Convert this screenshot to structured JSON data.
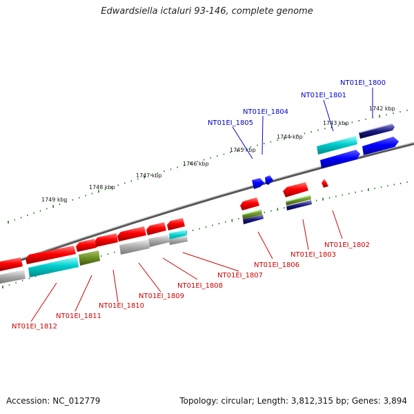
{
  "title": "Edwardsiella ictaluri 93-146, complete genome",
  "footer": {
    "accession": "Accession: NC_012779",
    "topology": "Topology: circular; Length: 3,812,315 bp; Genes: 3,894"
  },
  "kbp_labels": [
    "1742 kbp",
    "1743 kbp",
    "1744 kbp",
    "1745 kbp",
    "1746 kbp",
    "1747 kbp",
    "1748 kbp",
    "1749 kbp"
  ],
  "forward_genes": [
    {
      "id": "NT01EI_1800",
      "color": "#0000cc"
    },
    {
      "id": "NT01EI_1801",
      "color": "#0000cc"
    },
    {
      "id": "NT01EI_1804",
      "color": "#0000cc"
    },
    {
      "id": "NT01EI_1805",
      "color": "#0000cc"
    }
  ],
  "reverse_genes": [
    {
      "id": "NT01EI_1802",
      "color": "#cc0000"
    },
    {
      "id": "NT01EI_1803",
      "color": "#cc0000"
    },
    {
      "id": "NT01EI_1806",
      "color": "#cc0000"
    },
    {
      "id": "NT01EI_1807",
      "color": "#cc0000"
    },
    {
      "id": "NT01EI_1808",
      "color": "#cc0000"
    },
    {
      "id": "NT01EI_1809",
      "color": "#cc0000"
    },
    {
      "id": "NT01EI_1810",
      "color": "#cc0000"
    },
    {
      "id": "NT01EI_1811",
      "color": "#cc0000"
    },
    {
      "id": "NT01EI_1812",
      "color": "#cc0000"
    }
  ],
  "colors": {
    "cds_reverse": "#ff0000",
    "cds_forward": "#0000ff",
    "cyan": "#00cccc",
    "navy": "#1a1a80",
    "olive": "#6b8e23",
    "gray": "#aaaaaa",
    "tick": "#1a7a1a"
  }
}
